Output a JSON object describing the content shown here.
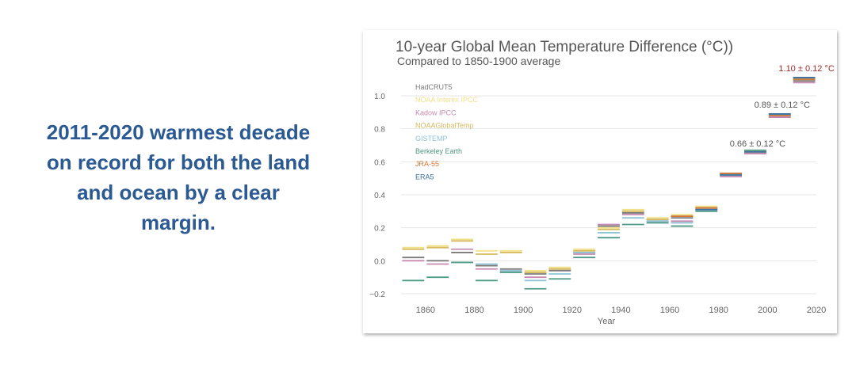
{
  "headline": {
    "lines": [
      "2011-2020  warmest decade",
      "on record for both the land",
      "and ocean by a clear",
      "margin."
    ]
  },
  "chart_data": {
    "type": "line",
    "title": "10-year Global Mean Temperature Difference (°C))",
    "subtitle": "Compared to 1850-1900 average",
    "xlabel": "Year",
    "ylabel": "",
    "xlim": [
      1850,
      2020
    ],
    "ylim": [
      -0.2,
      1.0
    ],
    "x_ticks": [
      1860,
      1880,
      1900,
      1920,
      1940,
      1960,
      1980,
      2000,
      2020
    ],
    "y_ticks": [
      1.0,
      0.8,
      0.6,
      0.4,
      0.2,
      0.0,
      -0.2
    ],
    "y_tick_labels": [
      "1.0",
      "0.8",
      "0.6",
      "0.4",
      "0.2",
      "0.0",
      "−0.2"
    ],
    "grid": true,
    "legend_position": "top-left",
    "decades": [
      1850,
      1860,
      1870,
      1880,
      1890,
      1900,
      1910,
      1920,
      1930,
      1940,
      1950,
      1960,
      1970,
      1980,
      1990,
      2000,
      2010
    ],
    "series": [
      {
        "name": "HadCRUT5",
        "color": "#7a7a7a",
        "values": [
          0.02,
          0.0,
          0.05,
          -0.03,
          -0.05,
          -0.08,
          -0.06,
          0.05,
          0.21,
          0.29,
          0.25,
          0.26,
          0.32,
          0.52,
          0.65,
          0.87,
          1.09
        ]
      },
      {
        "name": "NOAA Interim IPCC",
        "color": "#f0e08a",
        "values": [
          0.08,
          0.09,
          0.13,
          0.06,
          0.06,
          -0.06,
          -0.04,
          0.07,
          0.2,
          0.31,
          0.26,
          0.28,
          0.33,
          0.53,
          0.66,
          0.88,
          1.1
        ]
      },
      {
        "name": "Kadow IPCC",
        "color": "#c68ab0",
        "values": [
          0.0,
          -0.02,
          0.07,
          -0.05,
          -0.06,
          -0.1,
          -0.05,
          0.04,
          0.22,
          0.28,
          0.24,
          0.24,
          0.31,
          0.51,
          0.65,
          0.87,
          1.08
        ]
      },
      {
        "name": "NOAAGlobalTemp",
        "color": "#d7b85a",
        "values": [
          0.07,
          0.08,
          0.12,
          0.04,
          0.05,
          -0.07,
          -0.05,
          0.06,
          0.19,
          0.3,
          0.25,
          0.27,
          0.32,
          0.52,
          0.66,
          0.88,
          1.1
        ]
      },
      {
        "name": "GISTEMP",
        "color": "#8fc4d6",
        "values": [
          null,
          null,
          null,
          -0.02,
          -0.06,
          -0.12,
          -0.08,
          0.05,
          0.17,
          0.26,
          0.24,
          0.23,
          0.31,
          0.52,
          0.66,
          0.88,
          1.1
        ]
      },
      {
        "name": "Berkeley Earth",
        "color": "#4e9b85",
        "values": [
          -0.12,
          -0.1,
          -0.01,
          -0.12,
          -0.07,
          -0.17,
          -0.11,
          0.02,
          0.14,
          0.22,
          0.23,
          0.21,
          0.3,
          0.53,
          0.67,
          0.89,
          1.11
        ]
      },
      {
        "name": "JRA-55",
        "color": "#d0773a",
        "values": [
          null,
          null,
          null,
          null,
          null,
          null,
          null,
          null,
          null,
          null,
          null,
          0.27,
          0.32,
          0.53,
          0.66,
          0.88,
          1.1
        ]
      },
      {
        "name": "ERA5",
        "color": "#3a70a4",
        "values": [
          null,
          null,
          null,
          null,
          null,
          null,
          null,
          null,
          null,
          null,
          null,
          null,
          0.31,
          0.52,
          0.66,
          0.89,
          1.11
        ]
      }
    ],
    "annotations": [
      {
        "text": "0.66 ± 0.12 °C",
        "decade": 1990,
        "color": "#555555"
      },
      {
        "text": "0.89 ± 0.12 °C",
        "decade": 2000,
        "color": "#555555"
      },
      {
        "text": "1.10 ± 0.12 °C",
        "decade": 2010,
        "color": "#a02a2a"
      }
    ]
  }
}
